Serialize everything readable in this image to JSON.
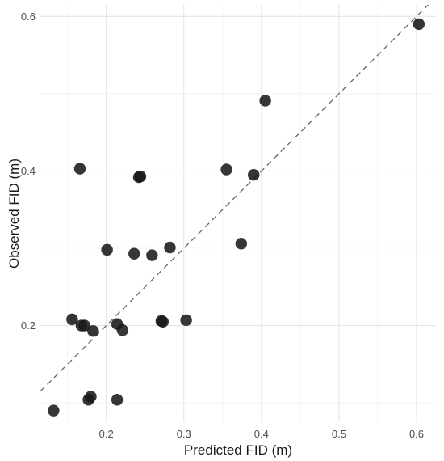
{
  "chart_data": {
    "type": "scatter",
    "xlabel": "Predicted FID (m)",
    "ylabel": "Observed FID (m)",
    "xlim": [
      0.115,
      0.625
    ],
    "ylim": [
      0.075,
      0.615
    ],
    "x_ticks": [
      0.2,
      0.3,
      0.4,
      0.5,
      0.6
    ],
    "x_tick_labels": [
      "0.2",
      "0.3",
      "0.4",
      "0.5",
      "0.6"
    ],
    "y_ticks": [
      0.2,
      0.4,
      0.6
    ],
    "y_tick_labels": [
      "0.2",
      "0.4",
      "0.6"
    ],
    "x_minor_ticks": [
      0.15,
      0.25,
      0.35,
      0.45,
      0.55
    ],
    "y_minor_ticks": [
      0.1,
      0.3,
      0.5
    ],
    "grid": true,
    "reference_line": {
      "type": "identity",
      "style": "dashed"
    },
    "point_color": "#1a1a1a",
    "line_color": "#666666",
    "points": [
      {
        "x": 0.132,
        "y": 0.09
      },
      {
        "x": 0.156,
        "y": 0.208
      },
      {
        "x": 0.166,
        "y": 0.403
      },
      {
        "x": 0.168,
        "y": 0.2
      },
      {
        "x": 0.172,
        "y": 0.2
      },
      {
        "x": 0.177,
        "y": 0.104
      },
      {
        "x": 0.18,
        "y": 0.108
      },
      {
        "x": 0.183,
        "y": 0.193
      },
      {
        "x": 0.201,
        "y": 0.298
      },
      {
        "x": 0.214,
        "y": 0.104
      },
      {
        "x": 0.214,
        "y": 0.202
      },
      {
        "x": 0.221,
        "y": 0.194
      },
      {
        "x": 0.236,
        "y": 0.293
      },
      {
        "x": 0.242,
        "y": 0.392
      },
      {
        "x": 0.244,
        "y": 0.393
      },
      {
        "x": 0.259,
        "y": 0.291
      },
      {
        "x": 0.271,
        "y": 0.206
      },
      {
        "x": 0.273,
        "y": 0.205
      },
      {
        "x": 0.282,
        "y": 0.301
      },
      {
        "x": 0.303,
        "y": 0.207
      },
      {
        "x": 0.355,
        "y": 0.402
      },
      {
        "x": 0.374,
        "y": 0.306
      },
      {
        "x": 0.39,
        "y": 0.395
      },
      {
        "x": 0.405,
        "y": 0.491
      },
      {
        "x": 0.603,
        "y": 0.59
      }
    ]
  }
}
